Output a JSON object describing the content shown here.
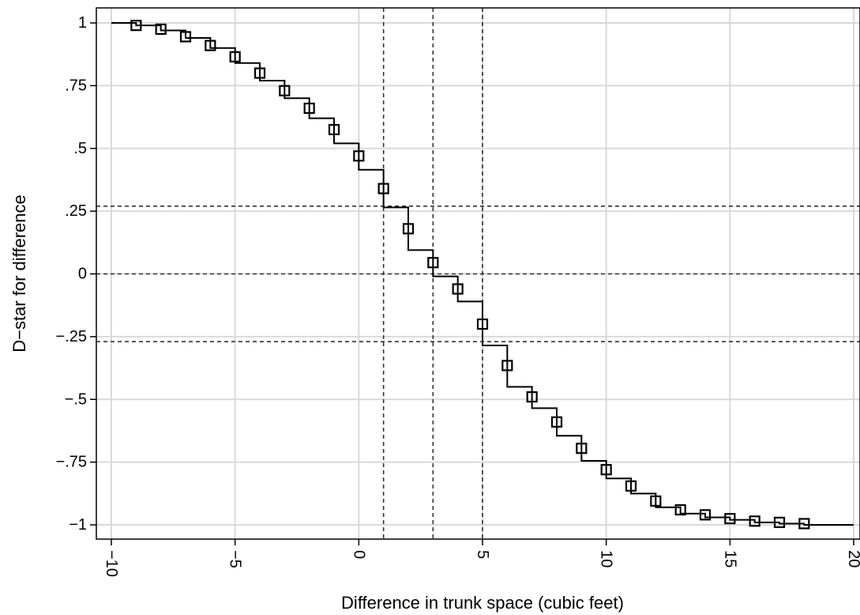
{
  "chart_data": {
    "type": "line",
    "title": "",
    "xlabel": "Difference in trunk space (cubic feet)",
    "ylabel": "D−star for difference",
    "xlim": [
      -10,
      20
    ],
    "ylim": [
      -1,
      1
    ],
    "x_ticks": [
      {
        "value": -10,
        "label": "−10"
      },
      {
        "value": -5,
        "label": "−5"
      },
      {
        "value": 0,
        "label": "0"
      },
      {
        "value": 5,
        "label": "5"
      },
      {
        "value": 10,
        "label": "10"
      },
      {
        "value": 15,
        "label": "15"
      },
      {
        "value": 20,
        "label": "20"
      }
    ],
    "y_ticks": [
      {
        "value": 1,
        "label": "1"
      },
      {
        "value": 0.75,
        "label": ".75"
      },
      {
        "value": 0.5,
        "label": ".5"
      },
      {
        "value": 0.25,
        "label": ".25"
      },
      {
        "value": 0,
        "label": "0"
      },
      {
        "value": -0.25,
        "label": "−.25"
      },
      {
        "value": -0.5,
        "label": "−.5"
      },
      {
        "value": -0.75,
        "label": "−.75"
      },
      {
        "value": -1,
        "label": "−1"
      }
    ],
    "grid": true,
    "reference_lines": {
      "x": [
        1,
        3,
        5
      ],
      "y": [
        0.27,
        0,
        -0.27
      ]
    },
    "series": [
      {
        "type": "step",
        "points": [
          [
            -10,
            1.0
          ],
          [
            -9,
            0.99
          ],
          [
            -8,
            0.97
          ],
          [
            -7,
            0.94
          ],
          [
            -6,
            0.9
          ],
          [
            -5,
            0.84
          ],
          [
            -4,
            0.77
          ],
          [
            -3,
            0.7
          ],
          [
            -2,
            0.62
          ],
          [
            -1,
            0.52
          ],
          [
            0,
            0.415
          ],
          [
            1,
            0.265
          ],
          [
            2,
            0.095
          ],
          [
            3,
            -0.01
          ],
          [
            4,
            -0.11
          ],
          [
            5,
            -0.285
          ],
          [
            6,
            -0.45
          ],
          [
            7,
            -0.535
          ],
          [
            8,
            -0.645
          ],
          [
            9,
            -0.745
          ],
          [
            10,
            -0.815
          ],
          [
            11,
            -0.875
          ],
          [
            12,
            -0.93
          ],
          [
            13,
            -0.955
          ],
          [
            14,
            -0.97
          ],
          [
            15,
            -0.98
          ],
          [
            16,
            -0.99
          ],
          [
            17,
            -0.995
          ],
          [
            18,
            -1.0
          ],
          [
            20,
            -1.0
          ]
        ]
      },
      {
        "type": "scatter",
        "marker": "hollow-square",
        "points": [
          [
            -9,
            0.99
          ],
          [
            -8,
            0.975
          ],
          [
            -7,
            0.945
          ],
          [
            -6,
            0.91
          ],
          [
            -5,
            0.865
          ],
          [
            -4,
            0.8
          ],
          [
            -3,
            0.73
          ],
          [
            -2,
            0.66
          ],
          [
            -1,
            0.575
          ],
          [
            0,
            0.47
          ],
          [
            1,
            0.34
          ],
          [
            2,
            0.18
          ],
          [
            3,
            0.045
          ],
          [
            4,
            -0.06
          ],
          [
            5,
            -0.2
          ],
          [
            6,
            -0.365
          ],
          [
            7,
            -0.49
          ],
          [
            8,
            -0.59
          ],
          [
            9,
            -0.695
          ],
          [
            10,
            -0.78
          ],
          [
            11,
            -0.845
          ],
          [
            12,
            -0.905
          ],
          [
            13,
            -0.94
          ],
          [
            14,
            -0.96
          ],
          [
            15,
            -0.975
          ],
          [
            16,
            -0.985
          ],
          [
            17,
            -0.99
          ],
          [
            18,
            -0.995
          ]
        ]
      }
    ]
  }
}
